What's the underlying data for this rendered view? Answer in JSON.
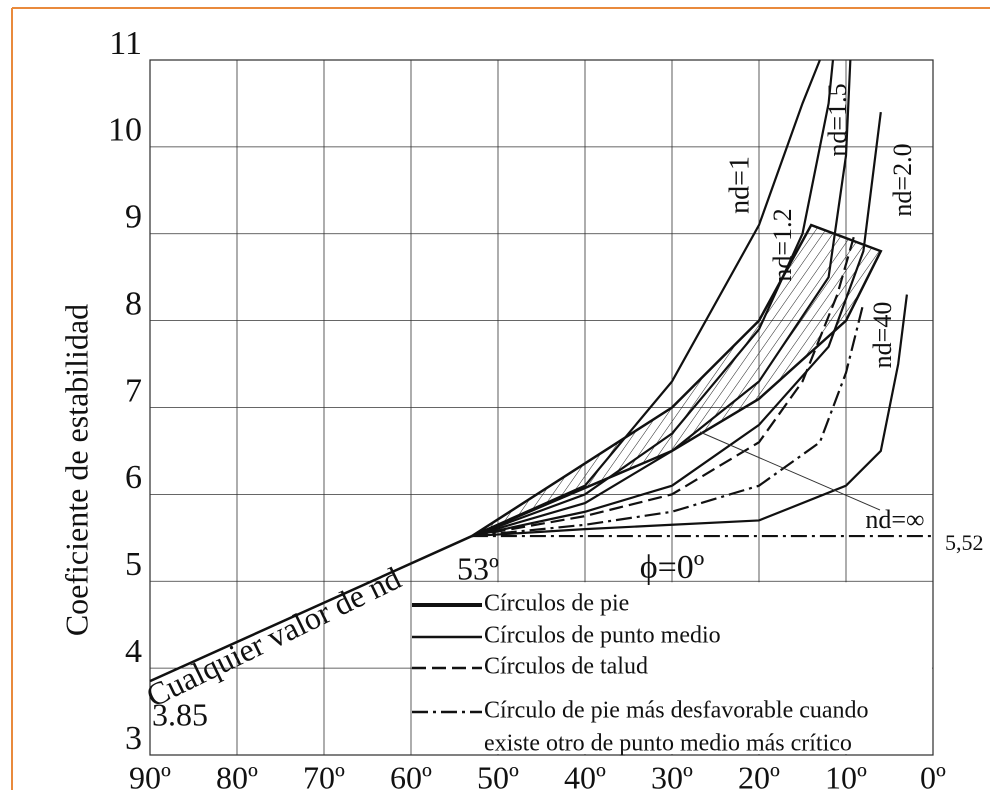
{
  "chart_data": {
    "type": "line",
    "y_label": "Coeficiente de estabilidad",
    "xlim": [
      90,
      0
    ],
    "ylim": [
      3,
      11
    ],
    "xticks": [
      {
        "value": 90,
        "label": "90º"
      },
      {
        "value": 80,
        "label": "80º"
      },
      {
        "value": 70,
        "label": "70º"
      },
      {
        "value": 60,
        "label": "60º"
      },
      {
        "value": 50,
        "label": "50º"
      },
      {
        "value": 40,
        "label": "40º"
      },
      {
        "value": 30,
        "label": "30º"
      },
      {
        "value": 20,
        "label": "20º"
      },
      {
        "value": 10,
        "label": "10º"
      },
      {
        "value": 0,
        "label": "0º"
      }
    ],
    "yticks": [
      3,
      4,
      5,
      6,
      7,
      8,
      9,
      10,
      11
    ],
    "grid": true,
    "color": "#111111",
    "series": [
      {
        "name": "Cualquier valor de nd",
        "style": "solid",
        "x": [
          90,
          53
        ],
        "values": [
          3.85,
          5.52
        ]
      },
      {
        "name": "nd=1",
        "style": "solid",
        "x": [
          53,
          40,
          30,
          20,
          15,
          13
        ],
        "values": [
          5.52,
          6.1,
          7.3,
          9.1,
          10.5,
          11
        ]
      },
      {
        "name": "nd=1.2",
        "style": "solid",
        "x": [
          53,
          40,
          30,
          20,
          15,
          12,
          11.5
        ],
        "values": [
          5.52,
          6.0,
          6.7,
          7.9,
          9.0,
          10.5,
          11
        ]
      },
      {
        "name": "nd=1.5",
        "style": "solid",
        "x": [
          53,
          40,
          30,
          20,
          12,
          10,
          9.5
        ],
        "values": [
          5.52,
          5.9,
          6.5,
          7.3,
          8.5,
          9.9,
          11
        ]
      },
      {
        "name": "nd=2.0",
        "style": "solid",
        "x": [
          53,
          40,
          30,
          20,
          12,
          8,
          6
        ],
        "values": [
          5.52,
          5.8,
          6.1,
          6.8,
          7.7,
          8.8,
          10.4
        ]
      },
      {
        "name": "nd=40",
        "style": "solid",
        "x": [
          53,
          40,
          30,
          20,
          10,
          6,
          4,
          3
        ],
        "values": [
          5.52,
          5.6,
          5.65,
          5.7,
          6.1,
          6.5,
          7.5,
          8.3
        ]
      },
      {
        "name": "nd=∞",
        "style": "dashdot",
        "x": [
          53,
          0
        ],
        "values": [
          5.52,
          5.52
        ]
      },
      {
        "style": "dashed",
        "x": [
          53,
          40,
          30,
          20,
          15,
          11,
          9
        ],
        "values": [
          5.52,
          5.75,
          6.0,
          6.6,
          7.3,
          8.3,
          9.0
        ]
      },
      {
        "style": "dashdot",
        "x": [
          53,
          40,
          30,
          20,
          13,
          10,
          8
        ],
        "values": [
          5.52,
          5.65,
          5.8,
          6.1,
          6.6,
          7.4,
          8.2
        ]
      }
    ],
    "region": {
      "x": [
        53,
        30,
        20,
        14,
        6,
        10,
        20,
        30,
        53
      ],
      "values": [
        5.52,
        7.0,
        8.0,
        9.1,
        8.8,
        8.0,
        7.1,
        6.5,
        5.52
      ]
    },
    "annotations": [
      "3.85",
      "5,52",
      "53º",
      "ϕ=0º"
    ],
    "legend": [
      {
        "label": "Círculos de pie",
        "style": "thick"
      },
      {
        "label": "Círculos de punto medio",
        "style": "solid"
      },
      {
        "label": "Círculos de talud",
        "style": "dashed"
      },
      {
        "label": "Círculo de pie más desfavorable cuando",
        "label2": "existe otro de punto medio más crítico",
        "style": "dashdot"
      }
    ]
  }
}
